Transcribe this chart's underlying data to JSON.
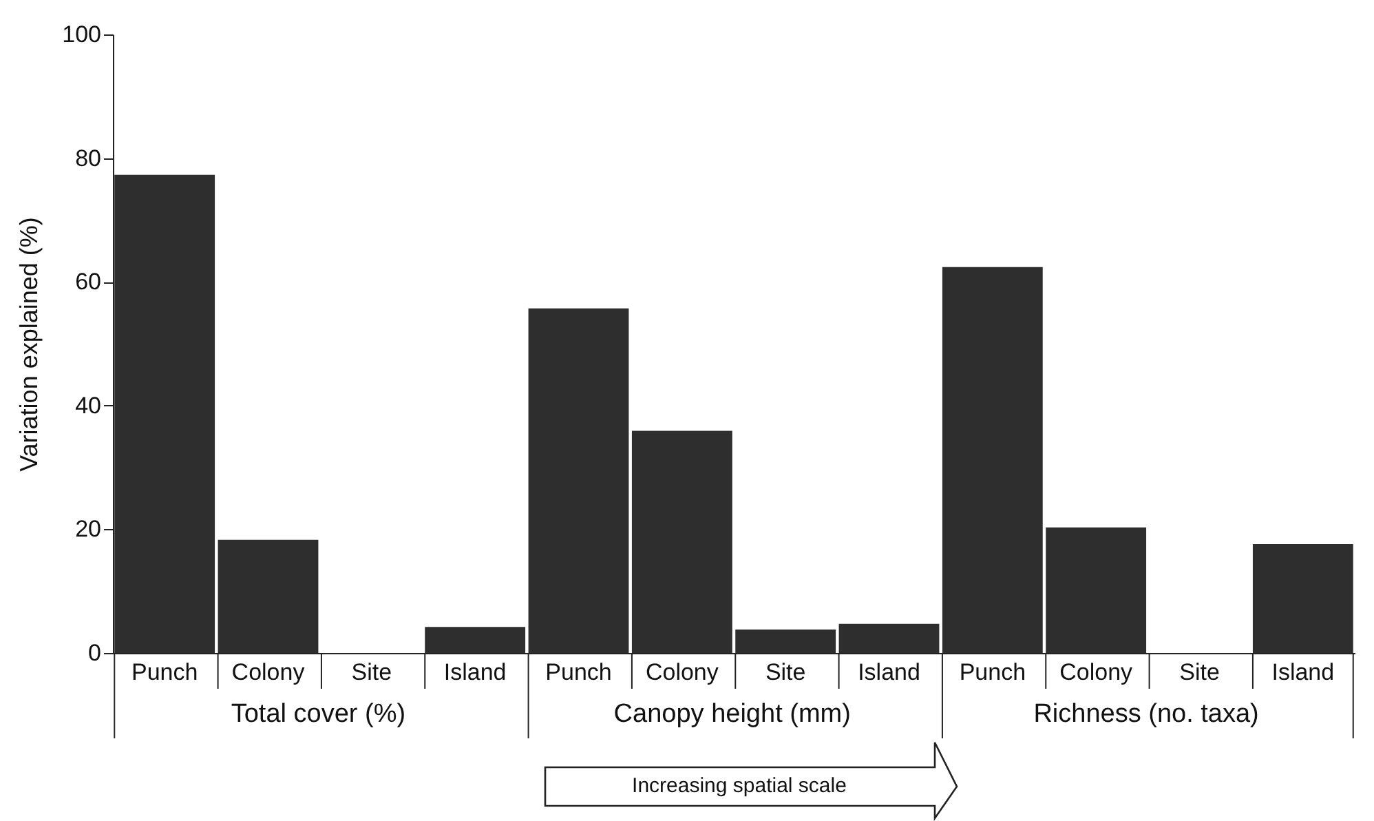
{
  "chart_data": {
    "type": "bar",
    "categories": [
      "Punch",
      "Colony",
      "Site",
      "Island",
      "Punch",
      "Colony",
      "Site",
      "Island",
      "Punch",
      "Colony",
      "Site",
      "Island"
    ],
    "values": [
      77.3,
      18.3,
      0,
      4.2,
      55.7,
      35.9,
      3.8,
      4.7,
      62.4,
      20.3,
      0,
      17.6
    ],
    "color": "#2e2e2e",
    "ylabel": "Variation explained (%)",
    "ylim": [
      0,
      100
    ],
    "yticks": [
      0,
      20,
      40,
      60,
      80,
      100
    ],
    "grid": false,
    "annotations": [
      "Total cover (%)",
      "Canopy height (mm)",
      "Richness (no. taxa)",
      "Increasing spatial scale"
    ]
  }
}
